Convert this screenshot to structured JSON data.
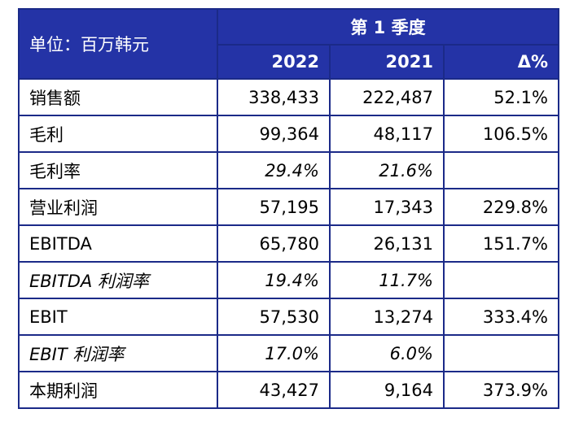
{
  "table": {
    "unit_label": "单位：百万韩元",
    "period_label": "第 1 季度",
    "columns": [
      "2022",
      "2021",
      "Δ%"
    ],
    "rows": [
      {
        "label": "销售额",
        "v2022": "338,433",
        "v2021": "222,487",
        "delta": "52.1%"
      },
      {
        "label": "毛利",
        "v2022": "99,364",
        "v2021": "48,117",
        "delta": "106.5%"
      },
      {
        "label": "毛利率",
        "v2022": "29.4%",
        "v2021": "21.6%",
        "delta": ""
      },
      {
        "label": "营业利润",
        "v2022": "57,195",
        "v2021": "17,343",
        "delta": "229.8%"
      },
      {
        "label": "EBITDA",
        "v2022": "65,780",
        "v2021": "26,131",
        "delta": "151.7%"
      },
      {
        "label": "EBITDA 利润率",
        "v2022": "19.4%",
        "v2021": "11.7%",
        "delta": ""
      },
      {
        "label": "EBIT",
        "v2022": "57,530",
        "v2021": "13,274",
        "delta": "333.4%"
      },
      {
        "label": "EBIT 利润率",
        "v2022": "17.0%",
        "v2021": "6.0%",
        "delta": ""
      },
      {
        "label": "本期利润",
        "v2022": "43,427",
        "v2021": "9,164",
        "delta": "373.9%"
      }
    ]
  },
  "colors": {
    "header_bg": "#2433a6",
    "border": "#1b2a88",
    "header_text": "#ffffff"
  }
}
